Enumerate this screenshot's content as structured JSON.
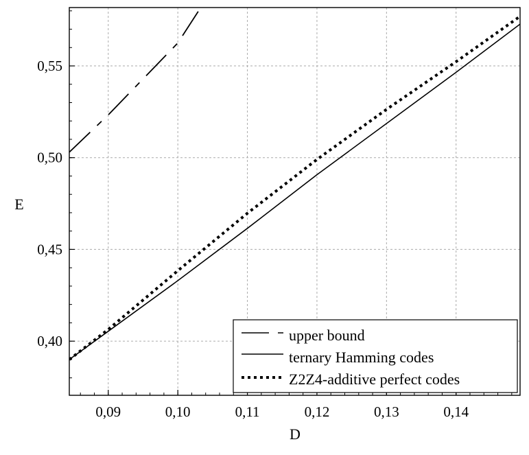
{
  "chart_data": {
    "type": "line",
    "title": "",
    "xlabel": "D",
    "ylabel": "E",
    "xlim": [
      0.0844,
      0.1492
    ],
    "ylim": [
      0.3705,
      0.5818
    ],
    "grid": true,
    "legend_position": "bottom-right",
    "xticks": [
      0.09,
      0.1,
      0.11,
      0.12,
      0.13,
      0.14
    ],
    "xtick_labels": [
      "0,09",
      "0,10",
      "0,11",
      "0,12",
      "0,13",
      "0,14"
    ],
    "yticks": [
      0.4,
      0.45,
      0.5,
      0.55
    ],
    "ytick_labels": [
      "0,40",
      "0,45",
      "0,50",
      "0,55"
    ],
    "series": [
      {
        "name": "upper bound",
        "style": "dashed",
        "x": [
          0.0844,
          0.09,
          0.095,
          0.1,
          0.1033
        ],
        "y": [
          0.503,
          0.5233,
          0.5429,
          0.5625,
          0.5818
        ]
      },
      {
        "name": "ternary Hamming codes",
        "style": "solid",
        "x": [
          0.0844,
          0.09,
          0.1,
          0.11,
          0.12,
          0.13,
          0.14,
          0.1492
        ],
        "y": [
          0.39,
          0.4054,
          0.433,
          0.4615,
          0.4907,
          0.5186,
          0.5465,
          0.5728
        ]
      },
      {
        "name": "Z2Z4-additive perfect codes",
        "style": "dotted",
        "x": [
          0.0844,
          0.09,
          0.1,
          0.11,
          0.12,
          0.13,
          0.14,
          0.1492
        ],
        "y": [
          0.39,
          0.4064,
          0.4384,
          0.4697,
          0.499,
          0.5263,
          0.5523,
          0.577
        ]
      }
    ]
  }
}
